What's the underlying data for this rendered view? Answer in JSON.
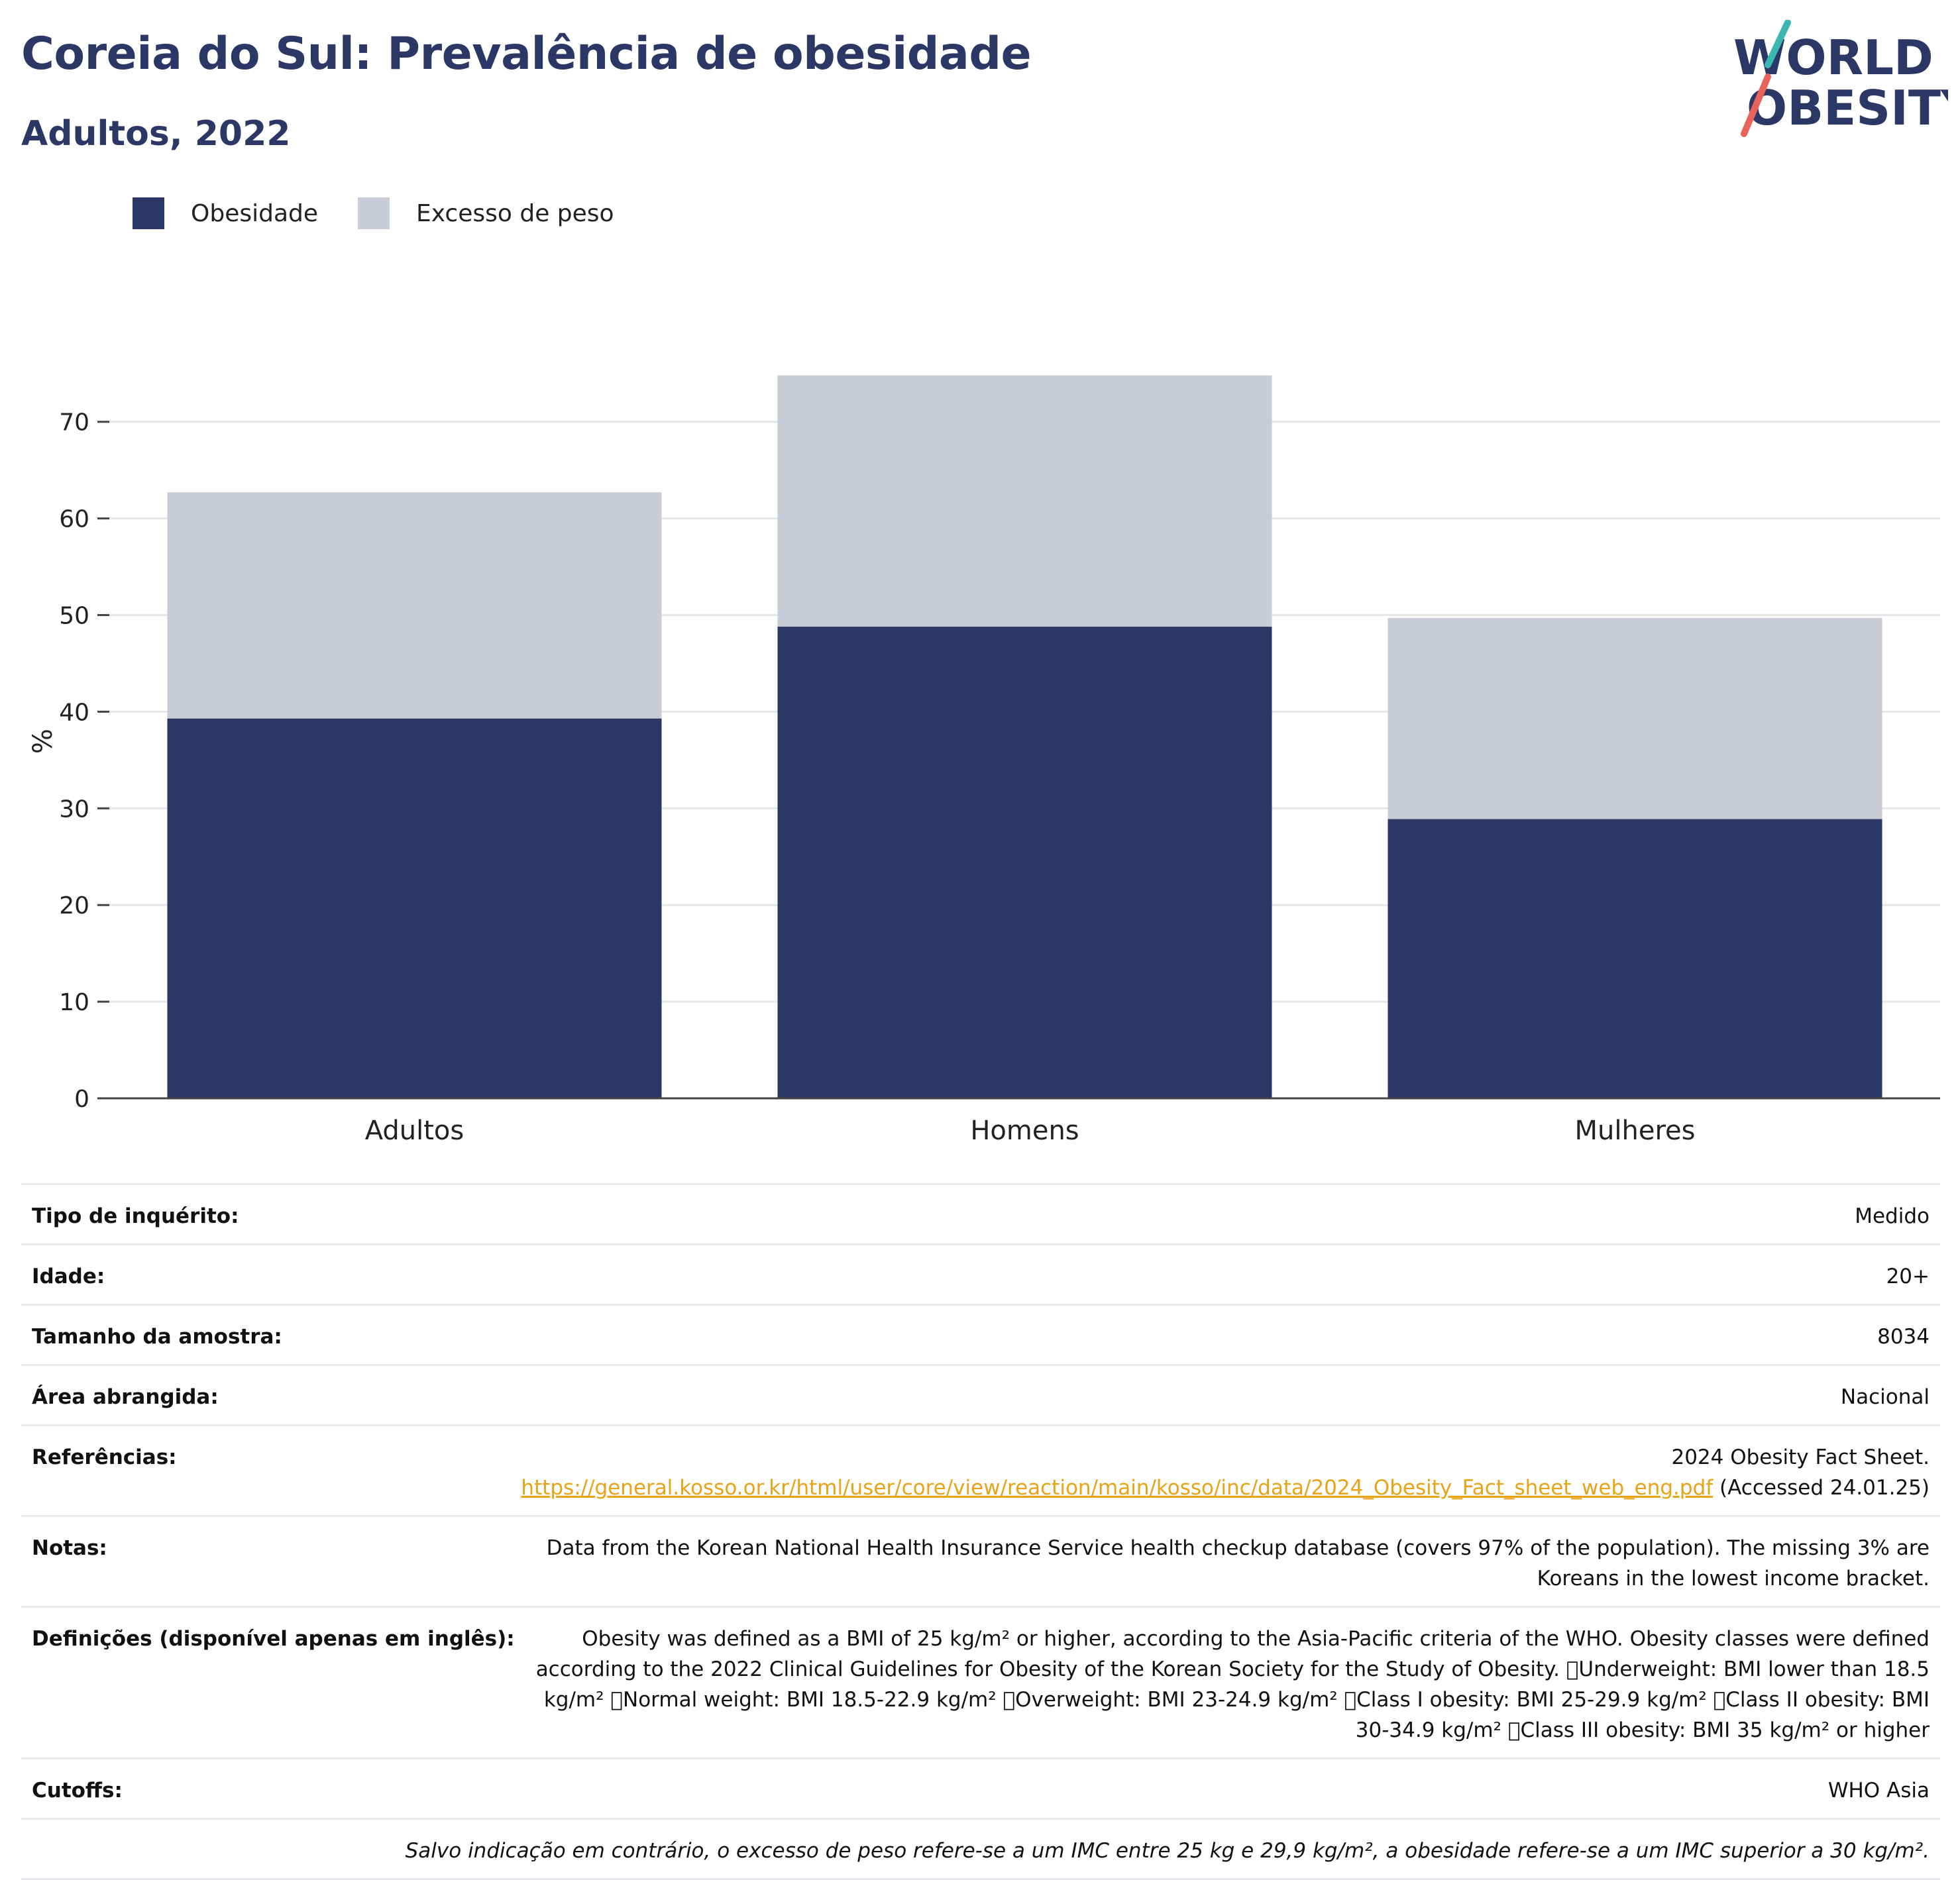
{
  "header": {
    "title": "Coreia do Sul: Prevalência de obesidade",
    "subtitle": "Adultos, 2022"
  },
  "logo": {
    "line1": "WORLD",
    "line2": "OBESITY"
  },
  "colors": {
    "obesity": "#2b3764",
    "overweight": "#c9cbd6",
    "link": "#e8a317",
    "logo_teal": "#3ab7b0",
    "logo_coral": "#e8635a"
  },
  "chart_data": {
    "type": "bar",
    "stacked": true,
    "categories": [
      "Adultos",
      "Homens",
      "Mulheres"
    ],
    "series": [
      {
        "name": "Obesidade",
        "values": [
          39.3,
          48.8,
          28.9
        ]
      },
      {
        "name": "Excesso de peso",
        "values": [
          23.4,
          26.0,
          20.8
        ]
      }
    ],
    "ylabel": "%",
    "ylim": [
      0,
      78
    ],
    "yticks": [
      0,
      10,
      20,
      30,
      40,
      50,
      60,
      70
    ],
    "grid": true,
    "legend": "top-left"
  },
  "info": [
    {
      "key": "Tipo de inquérito:",
      "value": "Medido"
    },
    {
      "key": "Idade:",
      "value": "20+"
    },
    {
      "key": "Tamanho da amostra:",
      "value": "8034"
    },
    {
      "key": "Área abrangida:",
      "value": "Nacional"
    }
  ],
  "references": {
    "key": "Referências:",
    "text_before": "2024 Obesity Fact Sheet.",
    "link": "https://general.kosso.or.kr/html/user/core/view/reaction/main/kosso/inc/data/2024_Obesity_Fact_sheet_web_eng.pdf",
    "text_after": "(Accessed 24.01.25)"
  },
  "notes": {
    "key": "Notas:",
    "value": "Data from the Korean National Health Insurance Service health checkup database (covers 97% of the population). The missing 3% are Koreans in the lowest income bracket."
  },
  "definitions": {
    "key": "Definições (disponível apenas em inglês):",
    "value": "Obesity was defined as a BMI of 25 kg/m² or higher, according to the Asia-Pacific criteria of the WHO. Obesity classes were defined according to the 2022 Clinical Guidelines for Obesity of the Korean Society for the Study of Obesity. \u0000Underweight: BMI lower than 18.5 kg/m² \u0000Normal weight: BMI 18.5-22.9 kg/m² \u0000Overweight: BMI 23-24.9 kg/m² \u0000Class I obesity: BMI 25-29.9 kg/m² \u0000Class II obesity: BMI 30-34.9 kg/m² \u0000Class III obesity: BMI 35 kg/m² or higher"
  },
  "cutoffs": {
    "key": "Cutoffs:",
    "value": "WHO Asia"
  },
  "footnote": "Salvo indicação em contrário, o excesso de peso refere-se a um IMC entre 25 kg e 29,9 kg/m², a obesidade refere-se a um IMC superior a 30 kg/m²."
}
